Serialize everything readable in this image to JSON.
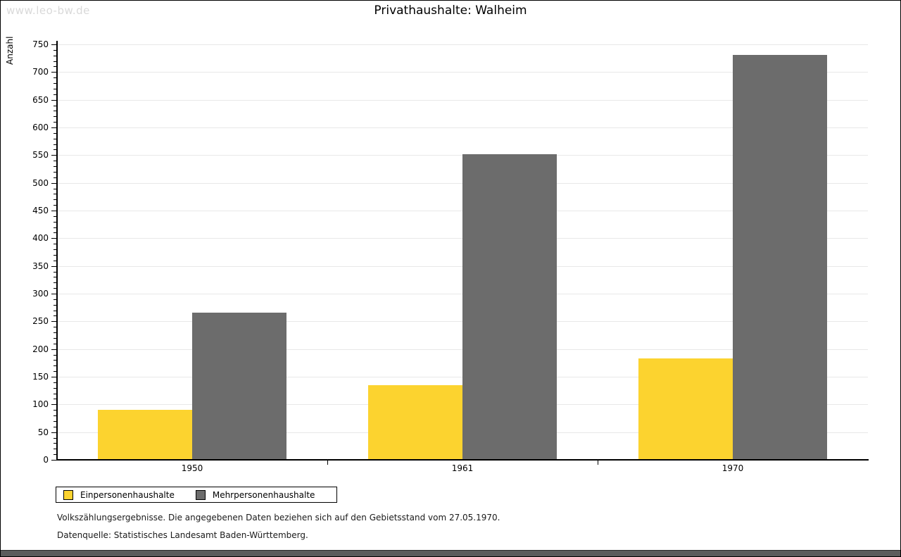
{
  "watermark": "www.leo-bw.de",
  "title": "Privathaushalte: Walheim",
  "chart_data": {
    "type": "bar",
    "categories": [
      "1950",
      "1961",
      "1970"
    ],
    "series": [
      {
        "name": "Einpersonenhaushalte",
        "color": "#fcd32f",
        "values": [
          89,
          133,
          182
        ]
      },
      {
        "name": "Mehrpersonenhaushalte",
        "color": "#6c6c6c",
        "values": [
          264,
          550,
          730
        ]
      }
    ],
    "title": "Privathaushalte: Walheim",
    "xlabel": "",
    "ylabel": "Anzahl",
    "ylim": [
      0,
      750
    ],
    "ytick_major": 50,
    "ytick_minor": 10,
    "grid": true,
    "gridline_color": "#e8e8e8",
    "legend_position": "bottom-left"
  },
  "footer": {
    "line1": "Volkszählungsergebnisse. Die angegebenen Daten beziehen sich auf den Gebietsstand vom 27.05.1970.",
    "line2": "Datenquelle: Statistisches Landesamt Baden-Württemberg."
  }
}
